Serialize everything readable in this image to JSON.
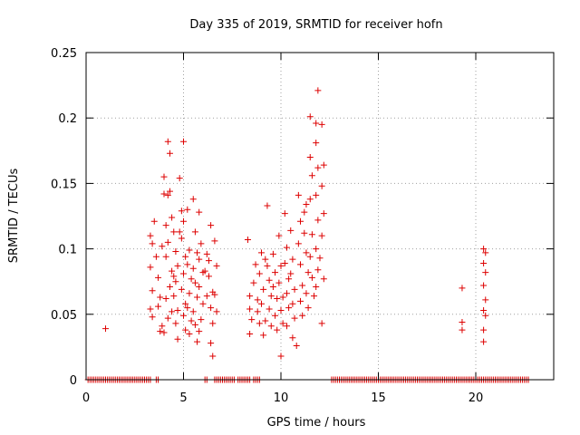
{
  "chart_data": {
    "type": "scatter",
    "title": "Day 335 of 2019, SRMTID for receiver hofn",
    "xlabel": "GPS time / hours",
    "ylabel": "SRMTID / TECUs",
    "xlim": [
      0,
      24
    ],
    "ylim": [
      0,
      0.25
    ],
    "x_ticks": [
      0,
      5,
      10,
      15,
      20
    ],
    "x_tick_labels": [
      "0",
      "5",
      "10",
      "15",
      "20"
    ],
    "y_ticks": [
      0,
      0.05,
      0.1,
      0.15,
      0.2,
      0.25
    ],
    "y_tick_labels": [
      "0",
      "0.05",
      "0.1",
      "0.15",
      "0.2",
      "0.25"
    ],
    "grid": true,
    "marker": "+",
    "series_color": "#dd0000",
    "series": [
      {
        "name": "SRMTID",
        "zero_segments": [
          [
            0.1,
            3.3
          ],
          [
            3.6,
            3.7
          ],
          [
            6.1,
            6.2
          ],
          [
            6.6,
            7.6
          ],
          [
            7.8,
            8.4
          ],
          [
            8.6,
            8.9
          ],
          [
            12.6,
            22.7
          ]
        ],
        "zero_step": 0.1,
        "points": [
          [
            1.0,
            0.039
          ],
          [
            3.3,
            0.11
          ],
          [
            3.4,
            0.104
          ],
          [
            3.3,
            0.086
          ],
          [
            3.4,
            0.068
          ],
          [
            3.3,
            0.054
          ],
          [
            3.4,
            0.048
          ],
          [
            3.5,
            0.121
          ],
          [
            3.6,
            0.094
          ],
          [
            3.7,
            0.078
          ],
          [
            3.8,
            0.063
          ],
          [
            3.7,
            0.056
          ],
          [
            3.9,
            0.041
          ],
          [
            3.8,
            0.037
          ],
          [
            3.9,
            0.102
          ],
          [
            4.0,
            0.142
          ],
          [
            4.0,
            0.155
          ],
          [
            4.1,
            0.118
          ],
          [
            4.2,
            0.141
          ],
          [
            4.2,
            0.182
          ],
          [
            4.3,
            0.173
          ],
          [
            4.3,
            0.144
          ],
          [
            4.4,
            0.124
          ],
          [
            4.2,
            0.105
          ],
          [
            4.1,
            0.094
          ],
          [
            4.4,
            0.083
          ],
          [
            4.3,
            0.071
          ],
          [
            4.1,
            0.062
          ],
          [
            4.4,
            0.052
          ],
          [
            4.2,
            0.047
          ],
          [
            4.0,
            0.036
          ],
          [
            4.5,
            0.113
          ],
          [
            4.6,
            0.098
          ],
          [
            4.7,
            0.087
          ],
          [
            4.6,
            0.075
          ],
          [
            4.5,
            0.064
          ],
          [
            4.7,
            0.053
          ],
          [
            4.6,
            0.043
          ],
          [
            4.7,
            0.031
          ],
          [
            4.8,
            0.154
          ],
          [
            4.9,
            0.129
          ],
          [
            5.0,
            0.182
          ],
          [
            5.0,
            0.121
          ],
          [
            4.9,
            0.108
          ],
          [
            5.1,
            0.094
          ],
          [
            5.0,
            0.081
          ],
          [
            4.9,
            0.069
          ],
          [
            5.1,
            0.058
          ],
          [
            5.0,
            0.049
          ],
          [
            5.1,
            0.038
          ],
          [
            5.2,
            0.13
          ],
          [
            5.3,
            0.099
          ],
          [
            5.2,
            0.088
          ],
          [
            5.4,
            0.077
          ],
          [
            5.3,
            0.066
          ],
          [
            5.2,
            0.055
          ],
          [
            5.4,
            0.045
          ],
          [
            5.3,
            0.035
          ],
          [
            5.5,
            0.138
          ],
          [
            5.6,
            0.113
          ],
          [
            5.7,
            0.097
          ],
          [
            5.5,
            0.085
          ],
          [
            5.6,
            0.074
          ],
          [
            5.7,
            0.063
          ],
          [
            5.5,
            0.052
          ],
          [
            5.6,
            0.042
          ],
          [
            5.7,
            0.029
          ],
          [
            5.8,
            0.128
          ],
          [
            5.9,
            0.104
          ],
          [
            6.0,
            0.082
          ],
          [
            5.8,
            0.071
          ],
          [
            6.0,
            0.058
          ],
          [
            5.9,
            0.046
          ],
          [
            5.8,
            0.037
          ],
          [
            6.1,
            0.083
          ],
          [
            6.2,
            0.064
          ],
          [
            6.3,
            0.091
          ],
          [
            6.4,
            0.118
          ],
          [
            6.3,
            0.079
          ],
          [
            6.5,
            0.067
          ],
          [
            6.4,
            0.055
          ],
          [
            6.5,
            0.043
          ],
          [
            6.4,
            0.028
          ],
          [
            6.6,
            0.106
          ],
          [
            6.7,
            0.087
          ],
          [
            6.6,
            0.065
          ],
          [
            6.7,
            0.052
          ],
          [
            6.5,
            0.018
          ],
          [
            6.2,
            0.096
          ],
          [
            4.8,
            0.113
          ],
          [
            4.5,
            0.079
          ],
          [
            5.8,
            0.092
          ],
          [
            8.3,
            0.107
          ],
          [
            8.4,
            0.064
          ],
          [
            8.4,
            0.054
          ],
          [
            8.5,
            0.046
          ],
          [
            8.4,
            0.035
          ],
          [
            8.6,
            0.074
          ],
          [
            8.7,
            0.088
          ],
          [
            8.8,
            0.061
          ],
          [
            8.9,
            0.081
          ],
          [
            8.8,
            0.052
          ],
          [
            8.9,
            0.043
          ],
          [
            9.0,
            0.097
          ],
          [
            9.1,
            0.069
          ],
          [
            9.0,
            0.058
          ],
          [
            9.2,
            0.045
          ],
          [
            9.1,
            0.034
          ],
          [
            9.3,
            0.133
          ],
          [
            9.3,
            0.087
          ],
          [
            9.4,
            0.076
          ],
          [
            9.5,
            0.064
          ],
          [
            9.4,
            0.054
          ],
          [
            9.5,
            0.041
          ],
          [
            9.6,
            0.096
          ],
          [
            9.7,
            0.082
          ],
          [
            9.6,
            0.071
          ],
          [
            9.8,
            0.062
          ],
          [
            9.7,
            0.049
          ],
          [
            9.8,
            0.038
          ],
          [
            9.9,
            0.11
          ],
          [
            10.0,
            0.087
          ],
          [
            9.9,
            0.074
          ],
          [
            10.1,
            0.063
          ],
          [
            10.0,
            0.053
          ],
          [
            10.1,
            0.043
          ],
          [
            10.0,
            0.018
          ],
          [
            10.2,
            0.127
          ],
          [
            10.3,
            0.101
          ],
          [
            10.2,
            0.089
          ],
          [
            10.4,
            0.077
          ],
          [
            10.3,
            0.066
          ],
          [
            10.4,
            0.055
          ],
          [
            10.3,
            0.041
          ],
          [
            10.5,
            0.114
          ],
          [
            10.6,
            0.092
          ],
          [
            10.5,
            0.081
          ],
          [
            10.7,
            0.069
          ],
          [
            10.6,
            0.058
          ],
          [
            10.7,
            0.047
          ],
          [
            10.8,
            0.026
          ],
          [
            10.9,
            0.141
          ],
          [
            11.0,
            0.121
          ],
          [
            10.9,
            0.104
          ],
          [
            11.0,
            0.088
          ],
          [
            11.1,
            0.072
          ],
          [
            11.0,
            0.06
          ],
          [
            11.1,
            0.049
          ],
          [
            11.2,
            0.112
          ],
          [
            11.3,
            0.134
          ],
          [
            11.3,
            0.097
          ],
          [
            11.4,
            0.082
          ],
          [
            11.3,
            0.066
          ],
          [
            11.4,
            0.055
          ],
          [
            11.5,
            0.201
          ],
          [
            11.5,
            0.17
          ],
          [
            11.6,
            0.156
          ],
          [
            11.5,
            0.138
          ],
          [
            11.6,
            0.111
          ],
          [
            11.5,
            0.094
          ],
          [
            11.6,
            0.078
          ],
          [
            11.7,
            0.064
          ],
          [
            11.8,
            0.196
          ],
          [
            11.9,
            0.221
          ],
          [
            11.8,
            0.181
          ],
          [
            11.9,
            0.162
          ],
          [
            11.8,
            0.141
          ],
          [
            11.9,
            0.122
          ],
          [
            11.8,
            0.1
          ],
          [
            11.9,
            0.084
          ],
          [
            11.8,
            0.071
          ],
          [
            12.0,
            0.093
          ],
          [
            12.1,
            0.195
          ],
          [
            12.2,
            0.164
          ],
          [
            12.1,
            0.148
          ],
          [
            12.2,
            0.127
          ],
          [
            12.1,
            0.11
          ],
          [
            12.2,
            0.077
          ],
          [
            12.1,
            0.043
          ],
          [
            9.2,
            0.092
          ],
          [
            10.6,
            0.032
          ],
          [
            11.2,
            0.128
          ],
          [
            19.3,
            0.07
          ],
          [
            19.3,
            0.044
          ],
          [
            19.3,
            0.038
          ],
          [
            20.4,
            0.1
          ],
          [
            20.4,
            0.089
          ],
          [
            20.5,
            0.082
          ],
          [
            20.4,
            0.072
          ],
          [
            20.5,
            0.061
          ],
          [
            20.4,
            0.053
          ],
          [
            20.5,
            0.049
          ],
          [
            20.4,
            0.038
          ],
          [
            20.4,
            0.029
          ],
          [
            20.5,
            0.097
          ]
        ]
      }
    ]
  }
}
